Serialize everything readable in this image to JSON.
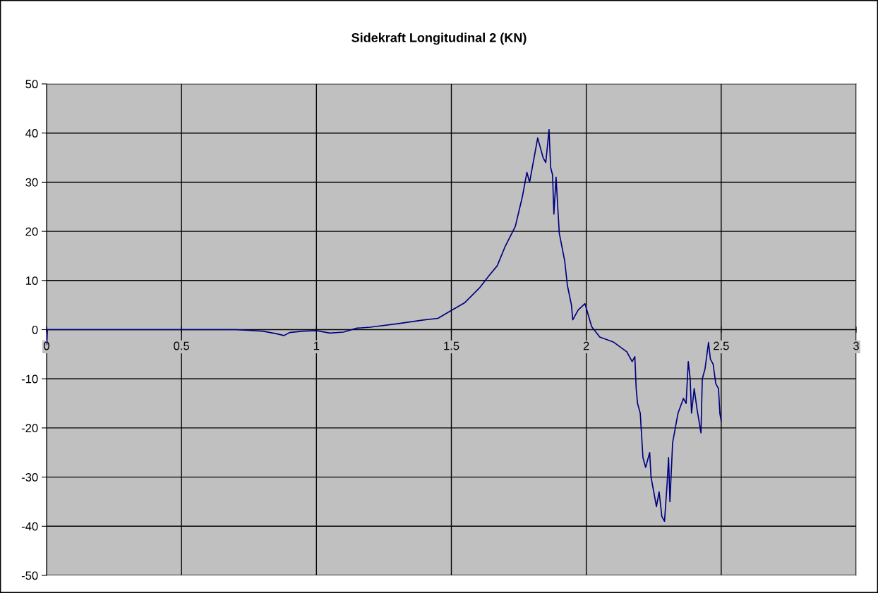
{
  "chart_data": {
    "type": "line",
    "title": "Sidekraft Longitudinal 2 (KN)",
    "xlim": [
      0,
      3
    ],
    "ylim": [
      -50,
      50
    ],
    "xticks": [
      0,
      0.5,
      1,
      1.5,
      2,
      2.5,
      3
    ],
    "yticks": [
      -50,
      -40,
      -30,
      -20,
      -10,
      0,
      10,
      20,
      30,
      40,
      50
    ],
    "grid": true,
    "legend": false,
    "marker": "none",
    "line_style": "solid",
    "series": [
      {
        "color": "#000080",
        "x": [
          0,
          0.001,
          0.003,
          0.3,
          0.5,
          0.7,
          0.8,
          0.85,
          0.88,
          0.9,
          0.95,
          1.0,
          1.05,
          1.1,
          1.15,
          1.2,
          1.3,
          1.4,
          1.45,
          1.5,
          1.55,
          1.606,
          1.64,
          1.67,
          1.7,
          1.737,
          1.75,
          1.763,
          1.78,
          1.79,
          1.8,
          1.82,
          1.83,
          1.84,
          1.85,
          1.862,
          1.868,
          1.875,
          1.88,
          1.888,
          1.9,
          1.92,
          1.93,
          1.945,
          1.95,
          1.97,
          1.995,
          2.02,
          2.05,
          2.1,
          2.15,
          2.17,
          2.18,
          2.185,
          2.19,
          2.2,
          2.21,
          2.22,
          2.235,
          2.24,
          2.25,
          2.26,
          2.27,
          2.28,
          2.29,
          2.3,
          2.305,
          2.31,
          2.32,
          2.33,
          2.34,
          2.36,
          2.37,
          2.378,
          2.385,
          2.39,
          2.4,
          2.41,
          2.425,
          2.43,
          2.44,
          2.453,
          2.46,
          2.47,
          2.48,
          2.49,
          2.495,
          2.5
        ],
        "values": [
          0,
          -3,
          0,
          0,
          0,
          0,
          -0.3,
          -0.8,
          -1.2,
          -0.6,
          -0.3,
          -0.2,
          -0.7,
          -0.5,
          0.3,
          0.5,
          1.2,
          2,
          2.3,
          3.9,
          5.5,
          8.6,
          11,
          13,
          17,
          21,
          24,
          27,
          32,
          30,
          33,
          39,
          37,
          35,
          34,
          40.7,
          33,
          31.5,
          23.5,
          31,
          19.6,
          14,
          9,
          5,
          2,
          4,
          5.3,
          0.6,
          -1.5,
          -2.5,
          -4.5,
          -6.5,
          -5.5,
          -12,
          -15,
          -17,
          -26,
          -28,
          -25,
          -30,
          -33,
          -36,
          -33,
          -38,
          -39,
          -31,
          -26,
          -35,
          -23,
          -20,
          -17,
          -14,
          -15,
          -6.5,
          -10,
          -17,
          -12,
          -16,
          -21,
          -10,
          -8,
          -2.6,
          -6,
          -7,
          -11,
          -12,
          -17,
          -18.6
        ]
      }
    ]
  }
}
